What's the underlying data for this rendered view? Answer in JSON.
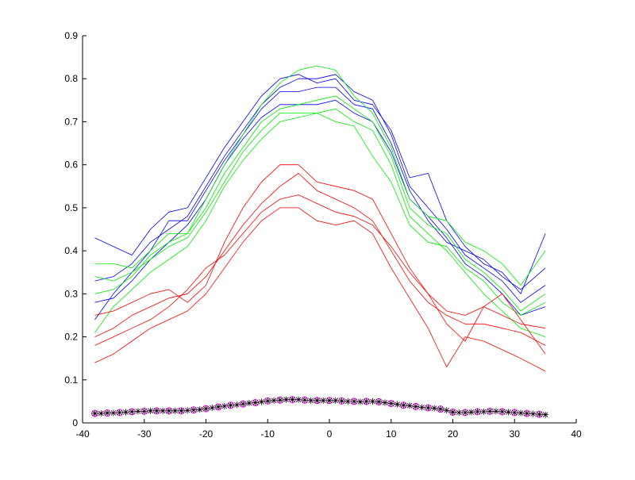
{
  "chart_data": {
    "type": "line",
    "title": "",
    "xlabel": "",
    "ylabel": "",
    "xlim": [
      -40,
      40
    ],
    "ylim": [
      0,
      0.9
    ],
    "grid": false,
    "xticks": [
      "-40",
      "-30",
      "-20",
      "-10",
      "0",
      "10",
      "20",
      "30",
      "40"
    ],
    "yticks": [
      "0",
      "0.1",
      "0.2",
      "0.3",
      "0.4",
      "0.5",
      "0.6",
      "0.7",
      "0.8",
      "0.9"
    ],
    "x": [
      -38,
      -35,
      -32,
      -29,
      -26,
      -23,
      -20,
      -17,
      -14,
      -11,
      -8,
      -5,
      -2,
      1,
      4,
      7,
      10,
      13,
      16,
      19,
      22,
      25,
      28,
      31,
      35
    ],
    "series": [
      {
        "color": "#0000ff",
        "values": [
          0.33,
          0.34,
          0.37,
          0.42,
          0.45,
          0.48,
          0.55,
          0.62,
          0.68,
          0.74,
          0.78,
          0.8,
          0.8,
          0.81,
          0.77,
          0.75,
          0.67,
          0.55,
          0.5,
          0.45,
          0.39,
          0.36,
          0.33,
          0.28,
          0.32
        ]
      },
      {
        "color": "#0000ff",
        "values": [
          0.43,
          0.41,
          0.39,
          0.45,
          0.49,
          0.5,
          0.57,
          0.64,
          0.7,
          0.76,
          0.8,
          0.81,
          0.79,
          0.8,
          0.75,
          0.74,
          0.68,
          0.57,
          0.58,
          0.47,
          0.41,
          0.37,
          0.35,
          0.3,
          0.44
        ]
      },
      {
        "color": "#0000ff",
        "values": [
          0.28,
          0.29,
          0.33,
          0.38,
          0.42,
          0.46,
          0.52,
          0.6,
          0.66,
          0.71,
          0.74,
          0.74,
          0.74,
          0.75,
          0.72,
          0.7,
          0.63,
          0.52,
          0.48,
          0.43,
          0.37,
          0.34,
          0.3,
          0.25,
          0.27
        ]
      },
      {
        "color": "#0000ff",
        "values": [
          0.24,
          0.3,
          0.35,
          0.4,
          0.47,
          0.47,
          0.54,
          0.61,
          0.67,
          0.73,
          0.77,
          0.77,
          0.78,
          0.78,
          0.74,
          0.73,
          0.65,
          0.54,
          0.47,
          0.42,
          0.4,
          0.38,
          0.34,
          0.31,
          0.36
        ]
      },
      {
        "color": "#00ee00",
        "values": [
          0.3,
          0.31,
          0.34,
          0.39,
          0.42,
          0.44,
          0.5,
          0.58,
          0.64,
          0.7,
          0.73,
          0.74,
          0.75,
          0.76,
          0.73,
          0.7,
          0.62,
          0.5,
          0.46,
          0.44,
          0.38,
          0.35,
          0.31,
          0.26,
          0.3
        ]
      },
      {
        "color": "#00ee00",
        "values": [
          0.37,
          0.37,
          0.36,
          0.4,
          0.44,
          0.44,
          0.52,
          0.6,
          0.67,
          0.74,
          0.79,
          0.82,
          0.83,
          0.82,
          0.76,
          0.72,
          0.64,
          0.52,
          0.48,
          0.47,
          0.42,
          0.4,
          0.37,
          0.32,
          0.4
        ]
      },
      {
        "color": "#00ee00",
        "values": [
          0.21,
          0.27,
          0.31,
          0.35,
          0.38,
          0.41,
          0.47,
          0.55,
          0.61,
          0.66,
          0.7,
          0.71,
          0.72,
          0.73,
          0.7,
          0.68,
          0.6,
          0.48,
          0.44,
          0.4,
          0.35,
          0.3,
          0.26,
          0.22,
          0.2
        ]
      },
      {
        "color": "#00ee00",
        "values": [
          0.34,
          0.33,
          0.35,
          0.38,
          0.41,
          0.43,
          0.49,
          0.56,
          0.63,
          0.68,
          0.72,
          0.72,
          0.72,
          0.7,
          0.69,
          0.62,
          0.56,
          0.46,
          0.42,
          0.41,
          0.36,
          0.33,
          0.28,
          0.25,
          0.28
        ]
      },
      {
        "color": "#ff0000",
        "values": [
          0.2,
          0.22,
          0.25,
          0.27,
          0.29,
          0.3,
          0.34,
          0.4,
          0.46,
          0.51,
          0.55,
          0.58,
          0.54,
          0.52,
          0.5,
          0.47,
          0.4,
          0.33,
          0.28,
          0.25,
          0.23,
          0.23,
          0.22,
          0.21,
          0.18
        ]
      },
      {
        "color": "#ff0000",
        "values": [
          0.14,
          0.16,
          0.19,
          0.22,
          0.24,
          0.26,
          0.3,
          0.36,
          0.42,
          0.47,
          0.5,
          0.5,
          0.47,
          0.46,
          0.47,
          0.44,
          0.36,
          0.29,
          0.22,
          0.13,
          0.2,
          0.19,
          0.17,
          0.15,
          0.12
        ]
      },
      {
        "color": "#ff0000",
        "values": [
          0.25,
          0.26,
          0.28,
          0.3,
          0.31,
          0.28,
          0.32,
          0.42,
          0.5,
          0.56,
          0.6,
          0.6,
          0.56,
          0.55,
          0.54,
          0.52,
          0.44,
          0.36,
          0.3,
          0.26,
          0.25,
          0.27,
          0.25,
          0.23,
          0.22
        ]
      },
      {
        "color": "#ff0000",
        "values": [
          0.18,
          0.2,
          0.22,
          0.24,
          0.27,
          0.31,
          0.36,
          0.39,
          0.44,
          0.49,
          0.52,
          0.53,
          0.51,
          0.49,
          0.48,
          0.46,
          0.41,
          0.35,
          0.3,
          0.23,
          0.19,
          0.27,
          0.3,
          0.24,
          0.16
        ]
      }
    ],
    "marker_series": {
      "x_start": -38,
      "x_step": 1,
      "marker": "asterisk",
      "color": "#000000",
      "circle_color": "#ff00ff",
      "values": [
        0.022,
        0.022,
        0.023,
        0.023,
        0.024,
        0.025,
        0.026,
        0.027,
        0.027,
        0.028,
        0.028,
        0.028,
        0.028,
        0.028,
        0.028,
        0.029,
        0.03,
        0.031,
        0.033,
        0.035,
        0.037,
        0.039,
        0.041,
        0.042,
        0.044,
        0.046,
        0.047,
        0.049,
        0.051,
        0.052,
        0.053,
        0.054,
        0.054,
        0.054,
        0.053,
        0.052,
        0.052,
        0.052,
        0.052,
        0.052,
        0.051,
        0.05,
        0.05,
        0.049,
        0.05,
        0.05,
        0.049,
        0.047,
        0.045,
        0.043,
        0.041,
        0.04,
        0.038,
        0.036,
        0.035,
        0.034,
        0.032,
        0.029,
        0.025,
        0.024,
        0.024,
        0.025,
        0.026,
        0.026,
        0.027,
        0.027,
        0.026,
        0.025,
        0.024,
        0.023,
        0.022,
        0.021,
        0.02,
        0.019
      ]
    }
  }
}
